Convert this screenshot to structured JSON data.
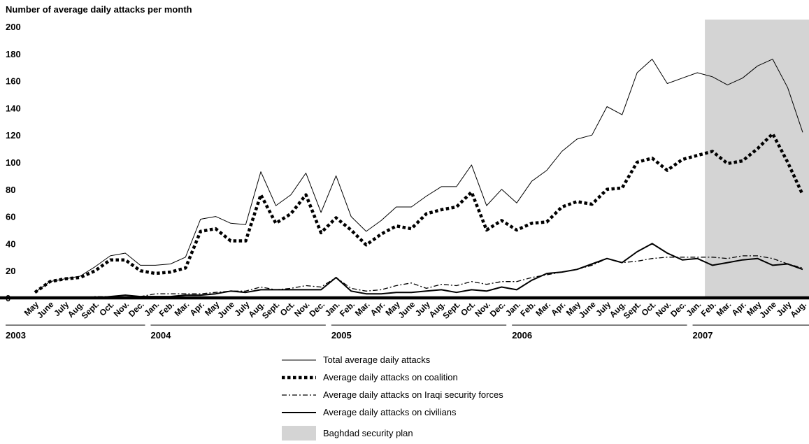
{
  "chart_data": {
    "type": "line",
    "ylabel": "Number of average daily attacks per month",
    "ylim": [
      0,
      200
    ],
    "yticks": [
      "0",
      "20",
      "40",
      "60",
      "80",
      "100",
      "120",
      "140",
      "160",
      "180",
      "200"
    ],
    "categories": [
      "May",
      "June",
      "July",
      "Aug.",
      "Sept.",
      "Oct.",
      "Nov.",
      "Dec.",
      "Jan.",
      "Feb.",
      "Mar.",
      "Apr.",
      "May",
      "June",
      "July",
      "Aug.",
      "Sept.",
      "Oct.",
      "Nov.",
      "Dec.",
      "Jan.",
      "Feb.",
      "Mar.",
      "Apr.",
      "May",
      "June",
      "July",
      "Aug.",
      "Sept.",
      "Oct.",
      "Nov.",
      "Dec.",
      "Jan.",
      "Feb.",
      "Mar.",
      "Apr.",
      "May",
      "June",
      "July",
      "Aug.",
      "Sept.",
      "Oct.",
      "Nov.",
      "Dec.",
      "Jan.",
      "Feb.",
      "Mar.",
      "Apr.",
      "May",
      "June",
      "July",
      "Aug."
    ],
    "years": [
      {
        "label": "2003",
        "start_index": 0
      },
      {
        "label": "2004",
        "start_index": 8
      },
      {
        "label": "2005",
        "start_index": 20
      },
      {
        "label": "2006",
        "start_index": 32
      },
      {
        "label": "2007",
        "start_index": 44
      }
    ],
    "series": [
      {
        "name": "Total average daily attacks",
        "style": "thin-solid",
        "values": [
          4,
          12,
          14,
          16,
          23,
          31,
          33,
          24,
          24,
          25,
          30,
          58,
          60,
          55,
          54,
          93,
          68,
          76,
          92,
          63,
          90,
          60,
          49,
          57,
          67,
          67,
          75,
          82,
          82,
          98,
          68,
          80,
          70,
          86,
          94,
          108,
          117,
          120,
          141,
          135,
          166,
          176,
          158,
          162,
          166,
          163,
          157,
          162,
          171,
          176,
          155,
          122
        ]
      },
      {
        "name": "Average daily attacks on coalition",
        "style": "dotted",
        "values": [
          4,
          12,
          14,
          15,
          20,
          28,
          28,
          20,
          18,
          19,
          22,
          49,
          51,
          42,
          42,
          76,
          55,
          62,
          76,
          48,
          59,
          50,
          39,
          47,
          53,
          51,
          62,
          65,
          67,
          78,
          50,
          57,
          50,
          55,
          56,
          67,
          71,
          69,
          80,
          81,
          100,
          103,
          94,
          102,
          105,
          108,
          99,
          101,
          110,
          121,
          100,
          76
        ]
      },
      {
        "name": "Average daily attacks on Iraqi security forces",
        "style": "dash-dot",
        "values": [
          0,
          0,
          0,
          0,
          1,
          1,
          2,
          1,
          3,
          3,
          3,
          3,
          4,
          5,
          5,
          8,
          6,
          7,
          9,
          8,
          15,
          7,
          5,
          6,
          9,
          11,
          7,
          10,
          9,
          12,
          10,
          12,
          12,
          15,
          17,
          19,
          21,
          24,
          29,
          26,
          27,
          29,
          30,
          30,
          30,
          30,
          29,
          31,
          31,
          29,
          25,
          22
        ]
      },
      {
        "name": "Average daily attacks on civilians",
        "style": "solid",
        "values": [
          0,
          0,
          0,
          0,
          0,
          1,
          2,
          1,
          1,
          1,
          2,
          2,
          3,
          5,
          4,
          6,
          6,
          6,
          6,
          6,
          15,
          5,
          3,
          3,
          4,
          4,
          5,
          6,
          4,
          6,
          5,
          8,
          6,
          13,
          18,
          19,
          21,
          25,
          29,
          26,
          34,
          40,
          33,
          28,
          29,
          24,
          26,
          28,
          29,
          24,
          25,
          21
        ]
      }
    ],
    "shaded_region": {
      "label": "Baghdad security plan",
      "from_index": 45,
      "to_index": 51,
      "color": "#d4d4d4"
    },
    "grid": false,
    "legend_position": "bottom-center"
  }
}
